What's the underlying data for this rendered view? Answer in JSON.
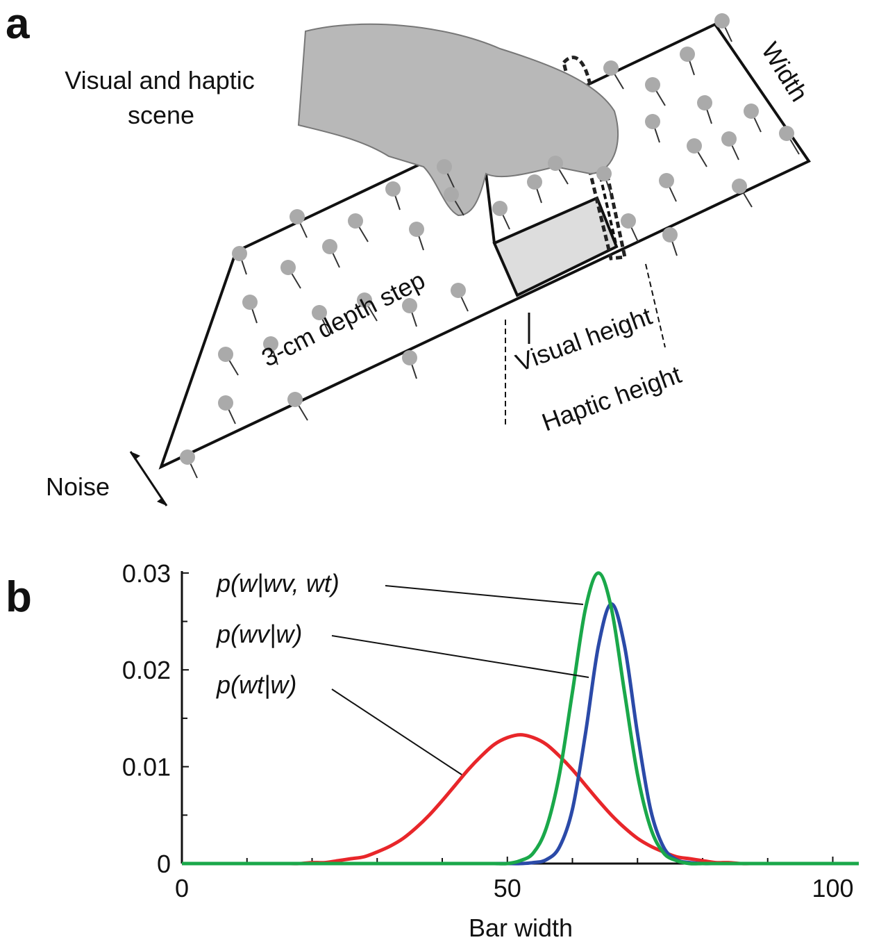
{
  "panels": [
    "a",
    "b"
  ],
  "diagram": {
    "scene_label": [
      "Visual and haptic",
      "scene"
    ],
    "width_label": "Width",
    "step_label": "3-cm depth step",
    "visual_height_label": "Visual height",
    "haptic_height_label": "Haptic height",
    "noise_label": "Noise"
  },
  "chart_data": {
    "type": "line",
    "x_label": "Bar width",
    "x": [
      0,
      2,
      4,
      6,
      8,
      10,
      12,
      14,
      16,
      18,
      20,
      22,
      24,
      26,
      28,
      30,
      32,
      34,
      36,
      38,
      40,
      42,
      44,
      46,
      48,
      50,
      52,
      54,
      56,
      58,
      60,
      62,
      64,
      66,
      68,
      70,
      72,
      74,
      76,
      78,
      80,
      82,
      84,
      86,
      88,
      90,
      92,
      94,
      96,
      98,
      100,
      102,
      104
    ],
    "series": [
      {
        "name": "p(w|wv, wt)",
        "color": "#1aa84a",
        "values": [
          0,
          0,
          0,
          0,
          0,
          0,
          0,
          0,
          0,
          0,
          0,
          0,
          0,
          0,
          0,
          0,
          0,
          0,
          0,
          0,
          0,
          0,
          0,
          0,
          0,
          0,
          0.0003,
          0.0011,
          0.0037,
          0.0092,
          0.0177,
          0.0263,
          0.03,
          0.0263,
          0.0177,
          0.0092,
          0.0037,
          0.0011,
          0.0003,
          0,
          0,
          0,
          0,
          0,
          0,
          0,
          0,
          0,
          0,
          0,
          0,
          0,
          0
        ]
      },
      {
        "name": "p(wv|w)",
        "color": "#2b4aa8",
        "values": [
          0,
          0,
          0,
          0,
          0,
          0,
          0,
          0,
          0,
          0,
          0,
          0,
          0,
          0,
          0,
          0,
          0,
          0,
          0,
          0,
          0,
          0,
          0,
          0,
          0,
          0,
          0,
          0.0001,
          0.0004,
          0.0017,
          0.0056,
          0.0134,
          0.0225,
          0.0268,
          0.0225,
          0.0134,
          0.0056,
          0.0017,
          0.0004,
          0.0001,
          0,
          0,
          0,
          0,
          0,
          0,
          0,
          0,
          0,
          0,
          0,
          0,
          0
        ]
      },
      {
        "name": "p(wt|w)",
        "color": "#e8262a",
        "values": [
          0,
          0,
          0,
          0,
          0,
          0,
          0,
          0,
          0,
          0,
          0.0001,
          0.0001,
          0.0003,
          0.0005,
          0.0007,
          0.0012,
          0.0018,
          0.0026,
          0.0037,
          0.005,
          0.0065,
          0.0081,
          0.0097,
          0.0111,
          0.0123,
          0.013,
          0.0133,
          0.013,
          0.0123,
          0.0111,
          0.0097,
          0.0081,
          0.0065,
          0.005,
          0.0037,
          0.0026,
          0.0018,
          0.0012,
          0.0007,
          0.0005,
          0.0003,
          0.0001,
          0.0001,
          0,
          0,
          0,
          0,
          0,
          0,
          0,
          0,
          0,
          0
        ]
      }
    ],
    "xlim": [
      0,
      104
    ],
    "ylim": [
      0,
      0.0302
    ],
    "xticks": [
      0,
      50,
      100
    ],
    "yticks": [
      0,
      0.01,
      0.02,
      0.03
    ],
    "xminorticks": [
      10,
      20,
      30,
      40,
      60,
      70,
      80,
      90
    ],
    "yminorticks": [
      0.005,
      0.015,
      0.025
    ]
  }
}
